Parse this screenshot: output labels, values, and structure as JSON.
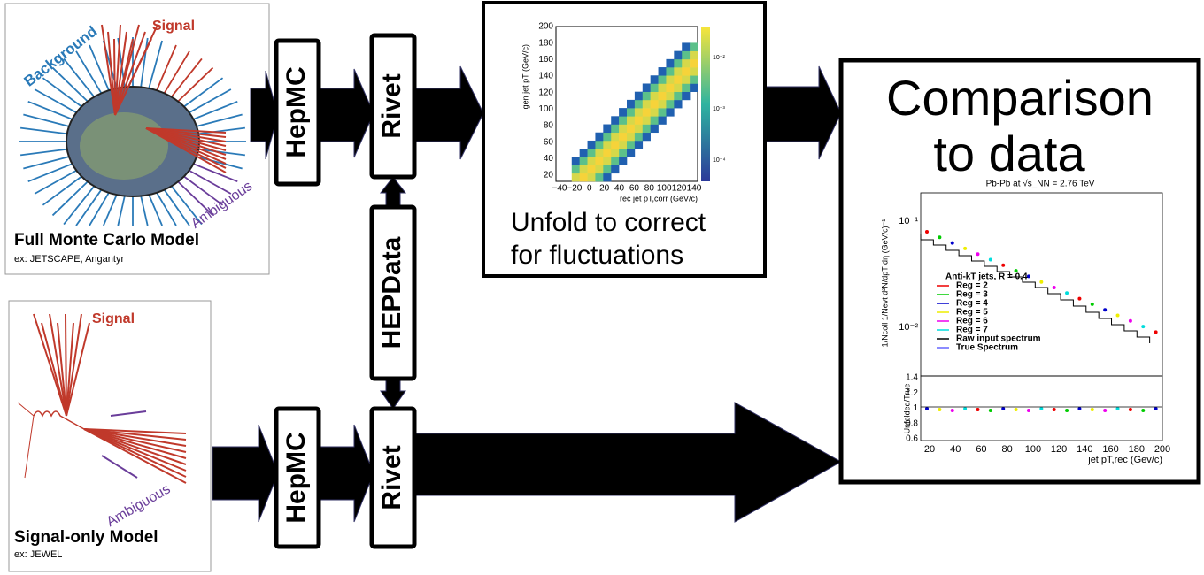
{
  "full_model": {
    "title": "Full Monte Carlo Model",
    "subtitle": "ex: JETSCAPE, Angantyr",
    "labels": {
      "signal": "Signal",
      "background": "Background",
      "ambiguous": "Ambiguous"
    }
  },
  "signal_model": {
    "title": "Signal-only Model",
    "subtitle": "ex: JEWEL",
    "labels": {
      "signal": "Signal",
      "ambiguous": "Ambiguous"
    }
  },
  "steps": {
    "hepmc_top": "HepMC",
    "rivet_top": "Rivet",
    "hepdata": "HEPData",
    "hepmc_bottom": "HepMC",
    "rivet_bottom": "Rivet"
  },
  "unfold": {
    "caption_lines": [
      "Unfold to correct",
      "for fluctuations"
    ],
    "heatmap": {
      "y_label": "gen jet pT (GeV/c)",
      "x_label": "rec jet pT,corr (GeV/c)",
      "xticks": [
        "−40",
        "−20",
        "0",
        "20",
        "40",
        "60",
        "80",
        "100",
        "120",
        "140"
      ],
      "yticks": [
        "20",
        "40",
        "60",
        "80",
        "100",
        "120",
        "140",
        "160",
        "180",
        "200"
      ],
      "colorbar_ticks": [
        "10⁻²",
        "10⁻³",
        "10⁻⁴"
      ]
    }
  },
  "comparison": {
    "title_lines": [
      "Comparison",
      "to data"
    ],
    "plot": {
      "title": "Pb-Pb at √s_NN = 2.76 TeV",
      "y_label": "1/Ncoll 1/Nevt d²N/dpT dη (GeV/c)⁻¹",
      "yticks": [
        "10⁻¹",
        "10⁻²"
      ],
      "legend": [
        "Anti-kT jets, R = 0.4",
        "Reg = 2",
        "Reg = 3",
        "Reg = 4",
        "Reg = 5",
        "Reg = 6",
        "Reg = 7",
        "Raw input spectrum",
        "True Spectrum"
      ],
      "ratio_label": "Unfolded/True",
      "ratio_yticks": [
        "1.4",
        "1.2",
        "1",
        "0.8",
        "0.6"
      ],
      "xticks": [
        "20",
        "40",
        "60",
        "80",
        "100",
        "120",
        "140",
        "160",
        "180",
        "200"
      ],
      "x_label": "jet pT,rec (Gev/c)"
    }
  }
}
